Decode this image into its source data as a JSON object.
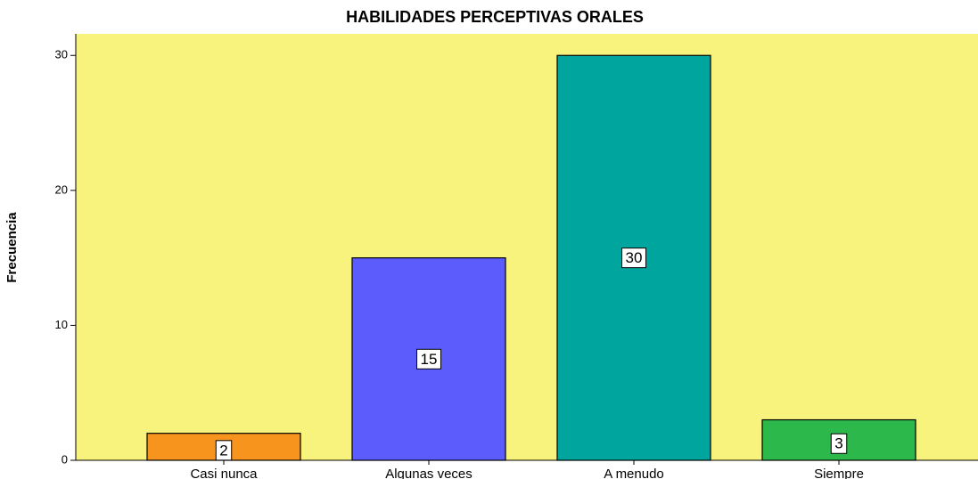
{
  "chart_data": {
    "type": "bar",
    "title": "HABILIDADES PERCEPTIVAS ORALES",
    "y_label": "Frecuencia",
    "categories": [
      "Casi nunca",
      "Algunas veces",
      "A menudo",
      "Siempre"
    ],
    "values": [
      2,
      15,
      30,
      3
    ],
    "colors": [
      "#f7941d",
      "#5c5cfc",
      "#00a59d",
      "#2db84c"
    ],
    "background": "#f8f37c",
    "ylim": [
      0,
      31.6
    ],
    "yticks": [
      0,
      10,
      20,
      30
    ],
    "grid": false,
    "value_labels_shown": true
  }
}
